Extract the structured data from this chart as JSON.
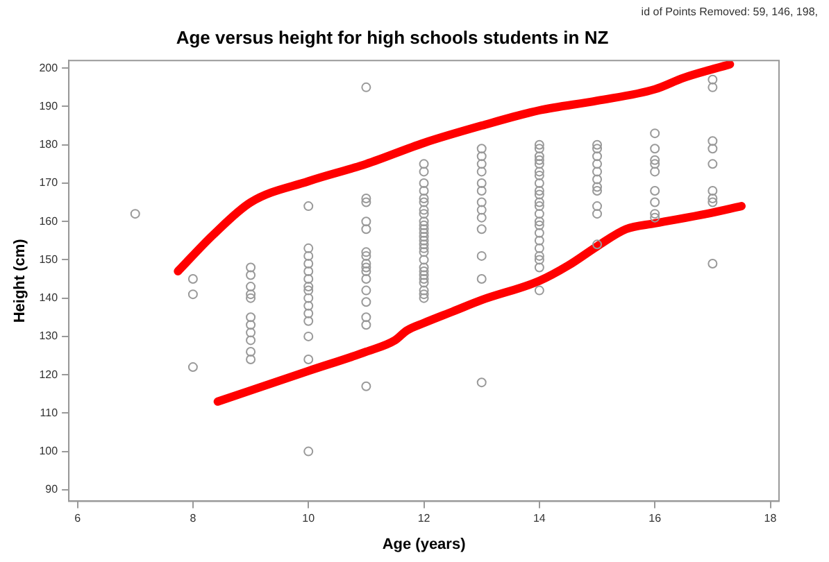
{
  "chart_data": {
    "type": "scatter",
    "title": "Age versus height for high schools students in NZ",
    "xlabel": "Age (years)",
    "ylabel": "Height (cm)",
    "annotations": [
      "id of Points Removed: 59, 146, 198,"
    ],
    "xlim": [
      5.85,
      18.15
    ],
    "xticks": [
      6,
      8,
      10,
      12,
      14,
      16,
      18
    ],
    "ylim": [
      87,
      202
    ],
    "yticks": [
      90,
      100,
      110,
      120,
      130,
      140,
      150,
      160,
      170,
      180,
      190,
      200
    ],
    "grid": false,
    "legend": false,
    "marker": "circle",
    "series": [
      {
        "color": "#999999",
        "x": [
          7,
          8,
          8,
          8,
          9,
          9,
          9,
          9,
          9,
          9,
          9,
          9,
          9,
          9,
          9,
          10,
          10,
          10,
          10,
          10,
          10,
          10,
          10,
          10,
          10,
          10,
          10,
          10,
          10,
          10,
          11,
          11,
          11,
          11,
          11,
          11,
          11,
          11,
          11,
          11,
          11,
          11,
          11,
          11,
          11,
          11,
          12,
          12,
          12,
          12,
          12,
          12,
          12,
          12,
          12,
          12,
          12,
          12,
          12,
          12,
          12,
          12,
          12,
          12,
          12,
          12,
          12,
          12,
          12,
          12,
          12,
          12,
          13,
          13,
          13,
          13,
          13,
          13,
          13,
          13,
          13,
          13,
          13,
          13,
          13,
          14,
          14,
          14,
          14,
          14,
          14,
          14,
          14,
          14,
          14,
          14,
          14,
          14,
          14,
          14,
          14,
          14,
          14,
          14,
          14,
          14,
          14,
          15,
          15,
          15,
          15,
          15,
          15,
          15,
          15,
          15,
          15,
          15,
          16,
          16,
          16,
          16,
          16,
          16,
          16,
          16,
          16,
          17,
          17,
          17,
          17,
          17,
          17,
          17,
          17,
          17
        ],
        "values": [
          162,
          145,
          141,
          122,
          148,
          146,
          143,
          141,
          140,
          135,
          133,
          131,
          129,
          126,
          124,
          164,
          153,
          151,
          149,
          147,
          145,
          143,
          142,
          140,
          138,
          136,
          134,
          130,
          124,
          100,
          195,
          166,
          165,
          160,
          158,
          152,
          151,
          149,
          148,
          147,
          145,
          142,
          139,
          135,
          133,
          117,
          175,
          173,
          170,
          168,
          166,
          165,
          163,
          162,
          160,
          159,
          158,
          157,
          156,
          155,
          154,
          153,
          152,
          150,
          148,
          147,
          146,
          145,
          144,
          142,
          141,
          140,
          179,
          177,
          175,
          173,
          170,
          168,
          165,
          163,
          161,
          158,
          151,
          145,
          118,
          180,
          179,
          177,
          176,
          175,
          173,
          172,
          170,
          168,
          167,
          165,
          164,
          162,
          160,
          159,
          157,
          155,
          153,
          151,
          150,
          148,
          142,
          180,
          179,
          177,
          175,
          173,
          171,
          169,
          168,
          164,
          162,
          154,
          183,
          179,
          176,
          175,
          173,
          168,
          165,
          162,
          161,
          197,
          195,
          181,
          179,
          175,
          168,
          166,
          165,
          149
        ]
      },
      {
        "type": "line",
        "color": "#ff0000",
        "marker": "none",
        "x": [
          7.74,
          8.35,
          9,
          10,
          11,
          12,
          13,
          14,
          15,
          16,
          16.5,
          17.3
        ],
        "values": [
          147,
          156.5,
          165,
          170.5,
          175,
          180.5,
          185,
          189,
          191.5,
          194.5,
          197.5,
          201
        ]
      },
      {
        "type": "line",
        "color": "#ff0000",
        "marker": "none",
        "x": [
          8.43,
          10,
          11,
          11.5,
          11.7,
          12,
          12.5,
          13,
          14,
          14.5,
          15,
          15.5,
          16,
          16.9,
          17.5
        ],
        "values": [
          113,
          121,
          126,
          129,
          131.5,
          133.5,
          136.5,
          139.5,
          144.5,
          148.5,
          153.5,
          158,
          159.5,
          162,
          164
        ]
      }
    ]
  }
}
